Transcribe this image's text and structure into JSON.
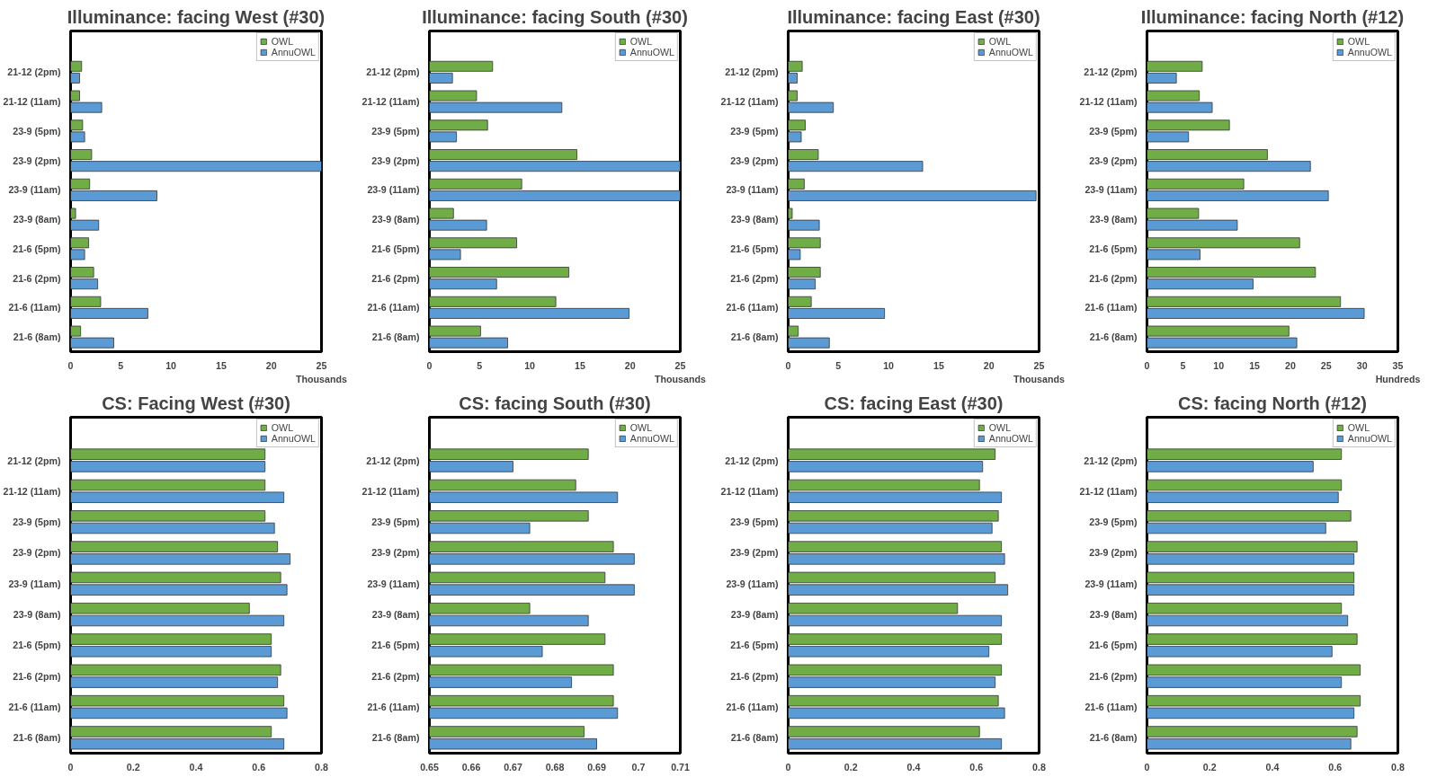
{
  "chart_data": [
    {
      "type": "bar",
      "orientation": "horizontal",
      "title": "Illuminance: facing West (#30)",
      "xlabel": "Thousands",
      "categories": [
        "21-12 (2pm)",
        "21-12 (11am)",
        "23-9 (5pm)",
        "23-9 (2pm)",
        "23-9 (11am)",
        "23-9 (8am)",
        "21-6 (5pm)",
        "21-6 (2pm)",
        "21-6 (11am)",
        "21-6 (8am)"
      ],
      "xlim": [
        0,
        25
      ],
      "xticks": [
        0,
        5,
        10,
        15,
        20,
        25
      ],
      "grid": false,
      "legend": "top right",
      "series": [
        {
          "name": "OWL",
          "color": "#70ad47",
          "values": [
            1.1,
            0.9,
            1.2,
            2.1,
            1.9,
            0.5,
            1.8,
            2.3,
            3.0,
            1.0
          ]
        },
        {
          "name": "AnnuOWL",
          "color": "#5b9bd5",
          "values": [
            0.9,
            3.1,
            1.4,
            25,
            8.6,
            2.8,
            1.4,
            2.7,
            7.7,
            4.3
          ]
        }
      ]
    },
    {
      "type": "bar",
      "orientation": "horizontal",
      "title": "Illuminance: facing South (#30)",
      "xlabel": "Thousands",
      "categories": [
        "21-12 (2pm)",
        "21-12 (11am)",
        "23-9 (5pm)",
        "23-9 (2pm)",
        "23-9 (11am)",
        "23-9 (8am)",
        "21-6 (5pm)",
        "21-6 (2pm)",
        "21-6 (11am)",
        "21-6 (8am)"
      ],
      "xlim": [
        0,
        25
      ],
      "xticks": [
        0,
        5,
        10,
        15,
        20,
        25
      ],
      "grid": false,
      "legend": "top right",
      "series": [
        {
          "name": "OWL",
          "color": "#70ad47",
          "values": [
            6.3,
            4.7,
            5.8,
            14.7,
            9.2,
            2.4,
            8.7,
            13.9,
            12.6,
            5.1
          ]
        },
        {
          "name": "AnnuOWL",
          "color": "#5b9bd5",
          "values": [
            2.3,
            13.2,
            2.7,
            25,
            25,
            5.7,
            3.1,
            6.7,
            19.9,
            7.8
          ]
        }
      ]
    },
    {
      "type": "bar",
      "orientation": "horizontal",
      "title": "Illuminance: facing East (#30)",
      "xlabel": "Thousands",
      "categories": [
        "21-12 (2pm)",
        "21-12 (11am)",
        "23-9 (5pm)",
        "23-9 (2pm)",
        "23-9 (11am)",
        "23-9 (8am)",
        "21-6 (5pm)",
        "21-6 (2pm)",
        "21-6 (11am)",
        "21-6 (8am)"
      ],
      "xlim": [
        0,
        25
      ],
      "xticks": [
        0,
        5,
        10,
        15,
        20,
        25
      ],
      "grid": false,
      "legend": "top right",
      "series": [
        {
          "name": "OWL",
          "color": "#70ad47",
          "values": [
            1.4,
            0.9,
            1.7,
            3.0,
            1.6,
            0.4,
            3.2,
            3.2,
            2.3,
            1.0
          ]
        },
        {
          "name": "AnnuOWL",
          "color": "#5b9bd5",
          "values": [
            0.9,
            4.5,
            1.3,
            13.4,
            24.7,
            3.1,
            1.2,
            2.7,
            9.6,
            4.1
          ]
        }
      ]
    },
    {
      "type": "bar",
      "orientation": "horizontal",
      "title": "Illuminance: facing North (#12)",
      "xlabel": "Hundreds",
      "categories": [
        "21-12 (2pm)",
        "21-12 (11am)",
        "23-9 (5pm)",
        "23-9 (2pm)",
        "23-9 (11am)",
        "23-9 (8am)",
        "21-6 (5pm)",
        "21-6 (2pm)",
        "21-6 (11am)",
        "21-6 (8am)"
      ],
      "xlim": [
        0,
        35
      ],
      "xticks": [
        0,
        5,
        10,
        15,
        20,
        25,
        30,
        35
      ],
      "grid": false,
      "legend": "top right",
      "series": [
        {
          "name": "OWL",
          "color": "#70ad47",
          "values": [
            7.7,
            7.3,
            11.5,
            16.8,
            13.5,
            7.2,
            21.3,
            23.5,
            27.0,
            19.8
          ]
        },
        {
          "name": "AnnuOWL",
          "color": "#5b9bd5",
          "values": [
            4.1,
            9.1,
            5.8,
            22.8,
            25.3,
            12.6,
            7.4,
            14.8,
            30.3,
            20.9
          ]
        }
      ]
    },
    {
      "type": "bar",
      "orientation": "horizontal",
      "title": "CS: Facing West (#30)",
      "categories": [
        "21-12 (2pm)",
        "21-12 (11am)",
        "23-9 (5pm)",
        "23-9 (2pm)",
        "23-9 (11am)",
        "23-9 (8am)",
        "21-6 (5pm)",
        "21-6 (2pm)",
        "21-6 (11am)",
        "21-6 (8am)"
      ],
      "xlim": [
        0,
        0.8
      ],
      "xticks": [
        0,
        0.2,
        0.4,
        0.6,
        0.8
      ],
      "grid": false,
      "legend": "top right",
      "series": [
        {
          "name": "OWL",
          "color": "#70ad47",
          "values": [
            0.62,
            0.62,
            0.62,
            0.66,
            0.67,
            0.57,
            0.64,
            0.67,
            0.68,
            0.64
          ]
        },
        {
          "name": "AnnuOWL",
          "color": "#5b9bd5",
          "values": [
            0.62,
            0.68,
            0.65,
            0.7,
            0.69,
            0.68,
            0.64,
            0.66,
            0.69,
            0.68
          ]
        }
      ]
    },
    {
      "type": "bar",
      "orientation": "horizontal",
      "title": "CS: facing South (#30)",
      "categories": [
        "21-12 (2pm)",
        "21-12 (11am)",
        "23-9 (5pm)",
        "23-9 (2pm)",
        "23-9 (11am)",
        "23-9 (8am)",
        "21-6 (5pm)",
        "21-6 (2pm)",
        "21-6 (11am)",
        "21-6 (8am)"
      ],
      "xlim": [
        0.65,
        0.71
      ],
      "xticks": [
        0.65,
        0.66,
        0.67,
        0.68,
        0.69,
        {
          "value": 0.7,
          "label": "0.7"
        },
        0.71
      ],
      "grid": false,
      "legend": "top right",
      "series": [
        {
          "name": "OWL",
          "color": "#70ad47",
          "values": [
            0.688,
            0.685,
            0.688,
            0.694,
            0.692,
            0.674,
            0.692,
            0.694,
            0.694,
            0.687
          ]
        },
        {
          "name": "AnnuOWL",
          "color": "#5b9bd5",
          "values": [
            0.67,
            0.695,
            0.674,
            0.699,
            0.699,
            0.688,
            0.677,
            0.684,
            0.695,
            0.69
          ]
        }
      ]
    },
    {
      "type": "bar",
      "orientation": "horizontal",
      "title": "CS: facing East (#30)",
      "categories": [
        "21-12 (2pm)",
        "21-12 (11am)",
        "23-9 (5pm)",
        "23-9 (2pm)",
        "23-9 (11am)",
        "23-9 (8am)",
        "21-6 (5pm)",
        "21-6 (2pm)",
        "21-6 (11am)",
        "21-6 (8am)"
      ],
      "xlim": [
        0,
        0.8
      ],
      "xticks": [
        0,
        0.2,
        0.4,
        0.6,
        0.8
      ],
      "grid": false,
      "legend": "top right",
      "series": [
        {
          "name": "OWL",
          "color": "#70ad47",
          "values": [
            0.66,
            0.61,
            0.67,
            0.68,
            0.66,
            0.54,
            0.68,
            0.68,
            0.67,
            0.61
          ]
        },
        {
          "name": "AnnuOWL",
          "color": "#5b9bd5",
          "values": [
            0.62,
            0.68,
            0.65,
            0.69,
            0.7,
            0.68,
            0.64,
            0.66,
            0.69,
            0.68
          ]
        }
      ]
    },
    {
      "type": "bar",
      "orientation": "horizontal",
      "title": "CS: facing North (#12)",
      "categories": [
        "21-12 (2pm)",
        "21-12 (11am)",
        "23-9 (5pm)",
        "23-9 (2pm)",
        "23-9 (11am)",
        "23-9 (8am)",
        "21-6 (5pm)",
        "21-6 (2pm)",
        "21-6 (11am)",
        "21-6 (8am)"
      ],
      "xlim": [
        0,
        0.8
      ],
      "xticks": [
        0,
        0.2,
        0.4,
        0.6,
        0.8
      ],
      "grid": false,
      "legend": "top right",
      "series": [
        {
          "name": "OWL",
          "color": "#70ad47",
          "values": [
            0.62,
            0.62,
            0.65,
            0.67,
            0.66,
            0.62,
            0.67,
            0.68,
            0.68,
            0.67
          ]
        },
        {
          "name": "AnnuOWL",
          "color": "#5b9bd5",
          "values": [
            0.53,
            0.61,
            0.57,
            0.66,
            0.66,
            0.64,
            0.59,
            0.62,
            0.66,
            0.65
          ]
        }
      ]
    }
  ]
}
